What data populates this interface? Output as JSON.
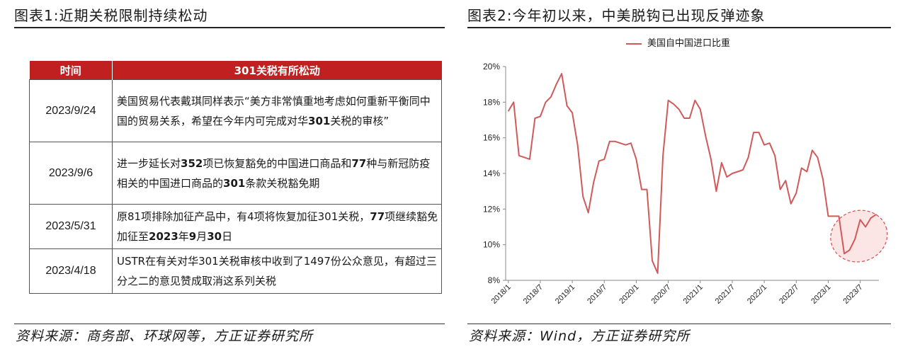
{
  "left_panel": {
    "title": "图表1:近期关税限制持续松动",
    "table": {
      "headers": [
        "时间",
        "301关税有所松动"
      ],
      "rows": [
        {
          "date": "2023/9/24",
          "parts": [
            [
              "美国贸易代表戴琪同样表示“美方非常慎重地考虑如何重新平衡同中国的贸易关系，希望在今年内可完成对华",
              false
            ],
            [
              "301",
              true
            ],
            [
              "关税的审核”",
              false
            ]
          ]
        },
        {
          "date": "2023/9/6",
          "parts": [
            [
              "进一步延长对",
              false
            ],
            [
              "352",
              true
            ],
            [
              "项已恢复豁免的中国进口商品和",
              false
            ],
            [
              "77",
              true
            ],
            [
              "种与新冠防疫相关的中国进口商品的",
              false
            ],
            [
              "301",
              true
            ],
            [
              "条款关税豁免期",
              false
            ]
          ]
        },
        {
          "date": "2023/5/31",
          "parts": [
            [
              "原81项排除加征产品中，有4项将恢复加征301关税，",
              false
            ],
            [
              "77",
              true
            ],
            [
              "项继续豁免加征至",
              false
            ],
            [
              "2023",
              true
            ],
            [
              "年",
              false
            ],
            [
              "9",
              true
            ],
            [
              "月",
              false
            ],
            [
              "30",
              true
            ],
            [
              "日",
              false
            ]
          ]
        },
        {
          "date": "2023/4/18",
          "parts": [
            [
              "USTR在有关对华301关税审核中收到了1497份公众意见，有超过三分之二的意见赞成取消这系列关税",
              false
            ]
          ]
        }
      ]
    },
    "source": "资料来源：商务部、环球网等，方正证券研究所"
  },
  "right_panel": {
    "title": "图表2:今年初以来，中美脱钩已出现反弹迹象",
    "source": "资料来源：Wind，方正证券研究所"
  },
  "colors": {
    "header_red": "#c0201f",
    "line": "#d05a5a",
    "highlight_fill": "#fbe5e5",
    "highlight_stroke": "#d9494a"
  },
  "chart_data": {
    "type": "line",
    "title": "",
    "legend_position": "top-center",
    "ylim": [
      8,
      20
    ],
    "y_ticks": [
      "8%",
      "10%",
      "12%",
      "14%",
      "16%",
      "18%",
      "20%"
    ],
    "x_ticks": [
      "2018/1",
      "2018/7",
      "2019/1",
      "2019/7",
      "2020/1",
      "2020/7",
      "2021/1",
      "2021/7",
      "2022/1",
      "2022/7",
      "2023/1",
      "2023/7"
    ],
    "x_start": "2018/1",
    "series": [
      {
        "name": "美国自中国进口比重",
        "unit": "%",
        "values": [
          17.5,
          18.0,
          15.0,
          14.9,
          14.8,
          17.1,
          17.2,
          18.0,
          18.3,
          19.0,
          19.6,
          17.8,
          17.4,
          15.6,
          12.7,
          11.8,
          13.5,
          14.7,
          14.8,
          15.8,
          15.8,
          15.7,
          15.6,
          15.7,
          14.8,
          13.1,
          13.1,
          9.1,
          8.4,
          15.0,
          18.1,
          17.9,
          17.6,
          17.1,
          17.1,
          18.1,
          17.6,
          16.1,
          14.8,
          13.0,
          14.6,
          13.8,
          14.0,
          14.1,
          14.2,
          14.9,
          16.3,
          16.3,
          15.6,
          15.7,
          15.0,
          13.1,
          13.6,
          12.3,
          12.9,
          14.3,
          14.1,
          15.3,
          14.9,
          13.7,
          11.6,
          11.6,
          11.6,
          9.5,
          9.7,
          10.3,
          11.4,
          11.0,
          11.5,
          11.7
        ]
      }
    ]
  }
}
